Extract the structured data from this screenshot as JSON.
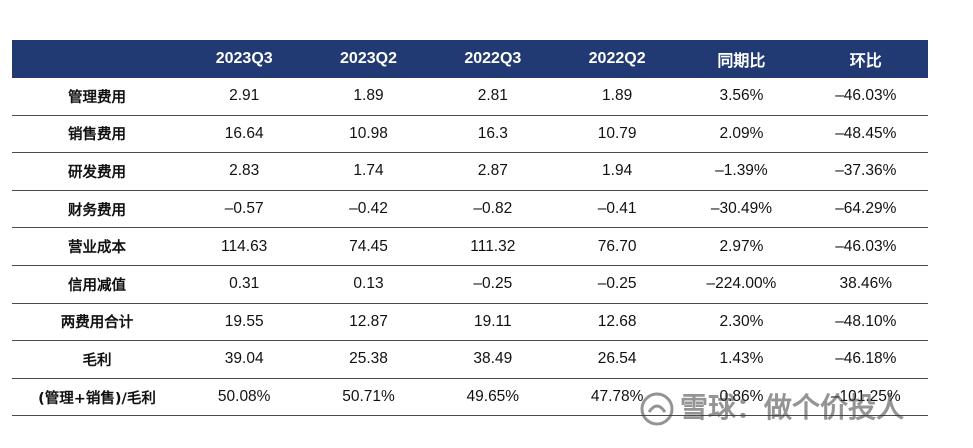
{
  "table": {
    "headers": [
      "",
      "2023Q3",
      "2023Q2",
      "2022Q3",
      "2022Q2",
      "同期比",
      "环比"
    ],
    "rows": [
      [
        "管理费用",
        "2.91",
        "1.89",
        "2.81",
        "1.89",
        "3.56%",
        "–46.03%"
      ],
      [
        "销售费用",
        "16.64",
        "10.98",
        "16.3",
        "10.79",
        "2.09%",
        "–48.45%"
      ],
      [
        "研发费用",
        "2.83",
        "1.74",
        "2.87",
        "1.94",
        "–1.39%",
        "–37.36%"
      ],
      [
        "财务费用",
        "–0.57",
        "–0.42",
        "–0.82",
        "–0.41",
        "–30.49%",
        "–64.29%"
      ],
      [
        "营业成本",
        "114.63",
        "74.45",
        "111.32",
        "76.70",
        "2.97%",
        "–46.03%"
      ],
      [
        "信用减值",
        "0.31",
        "0.13",
        "–0.25",
        "–0.25",
        "–224.00%",
        "38.46%"
      ],
      [
        "两费用合计",
        "19.55",
        "12.87",
        "19.11",
        "12.68",
        "2.30%",
        "–48.10%"
      ],
      [
        "毛利",
        "39.04",
        "25.38",
        "38.49",
        "26.54",
        "1.43%",
        "–46.18%"
      ],
      [
        "(管理+销售)/毛利",
        "50.08%",
        "50.71%",
        "49.65%",
        "47.78%",
        "0.86%",
        "–101.25%"
      ]
    ]
  },
  "watermark": {
    "text": "雪球：做个价投人"
  }
}
